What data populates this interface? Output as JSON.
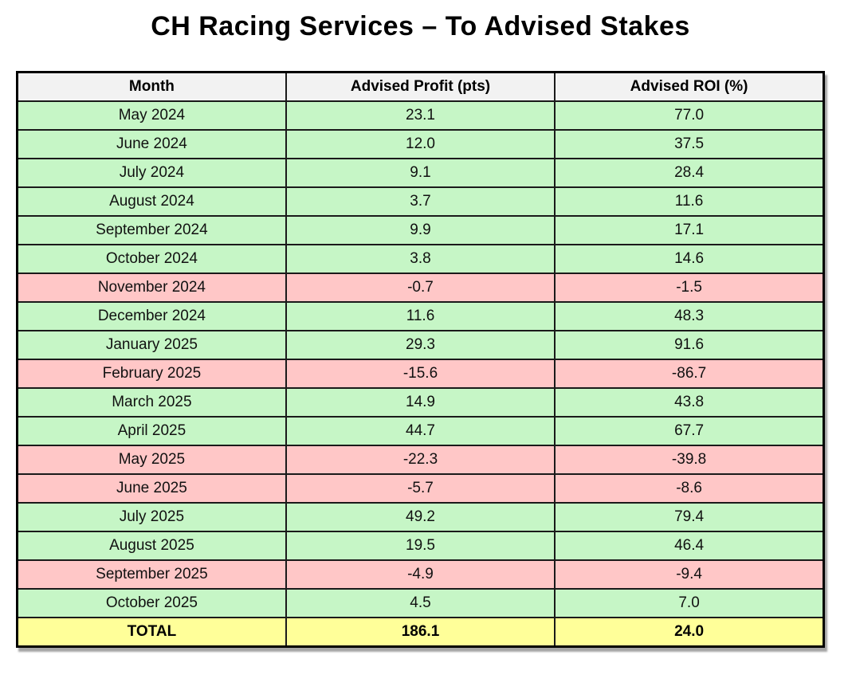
{
  "colors": {
    "positive": "#c6f6c6",
    "negative": "#ffc7c7",
    "total": "#ffff99",
    "header": "#f2f2f2",
    "border": "#000000",
    "text": "#111111"
  },
  "chart_data": {
    "type": "table",
    "title": "CH Racing Services – To Advised Stakes",
    "columns": [
      "Month",
      "Advised Profit (pts)",
      "Advised ROI (%)"
    ],
    "rows": [
      {
        "month": "May 2024",
        "profit": "23.1",
        "roi": "77.0",
        "status": "positive"
      },
      {
        "month": "June 2024",
        "profit": "12.0",
        "roi": "37.5",
        "status": "positive"
      },
      {
        "month": "July 2024",
        "profit": "9.1",
        "roi": "28.4",
        "status": "positive"
      },
      {
        "month": "August 2024",
        "profit": "3.7",
        "roi": "11.6",
        "status": "positive"
      },
      {
        "month": "September 2024",
        "profit": "9.9",
        "roi": "17.1",
        "status": "positive"
      },
      {
        "month": "October 2024",
        "profit": "3.8",
        "roi": "14.6",
        "status": "positive"
      },
      {
        "month": "November 2024",
        "profit": "-0.7",
        "roi": "-1.5",
        "status": "negative"
      },
      {
        "month": "December 2024",
        "profit": "11.6",
        "roi": "48.3",
        "status": "positive"
      },
      {
        "month": "January 2025",
        "profit": "29.3",
        "roi": "91.6",
        "status": "positive"
      },
      {
        "month": "February 2025",
        "profit": "-15.6",
        "roi": "-86.7",
        "status": "negative"
      },
      {
        "month": "March 2025",
        "profit": "14.9",
        "roi": "43.8",
        "status": "positive"
      },
      {
        "month": "April 2025",
        "profit": "44.7",
        "roi": "67.7",
        "status": "positive"
      },
      {
        "month": "May 2025",
        "profit": "-22.3",
        "roi": "-39.8",
        "status": "negative"
      },
      {
        "month": "June 2025",
        "profit": "-5.7",
        "roi": "-8.6",
        "status": "negative"
      },
      {
        "month": "July 2025",
        "profit": "49.2",
        "roi": "79.4",
        "status": "positive"
      },
      {
        "month": "August 2025",
        "profit": "19.5",
        "roi": "46.4",
        "status": "positive"
      },
      {
        "month": "September 2025",
        "profit": "-4.9",
        "roi": "-9.4",
        "status": "negative"
      },
      {
        "month": "October 2025",
        "profit": "4.5",
        "roi": "7.0",
        "status": "positive"
      }
    ],
    "total": {
      "label": "TOTAL",
      "profit": "186.1",
      "roi": "24.0"
    }
  }
}
